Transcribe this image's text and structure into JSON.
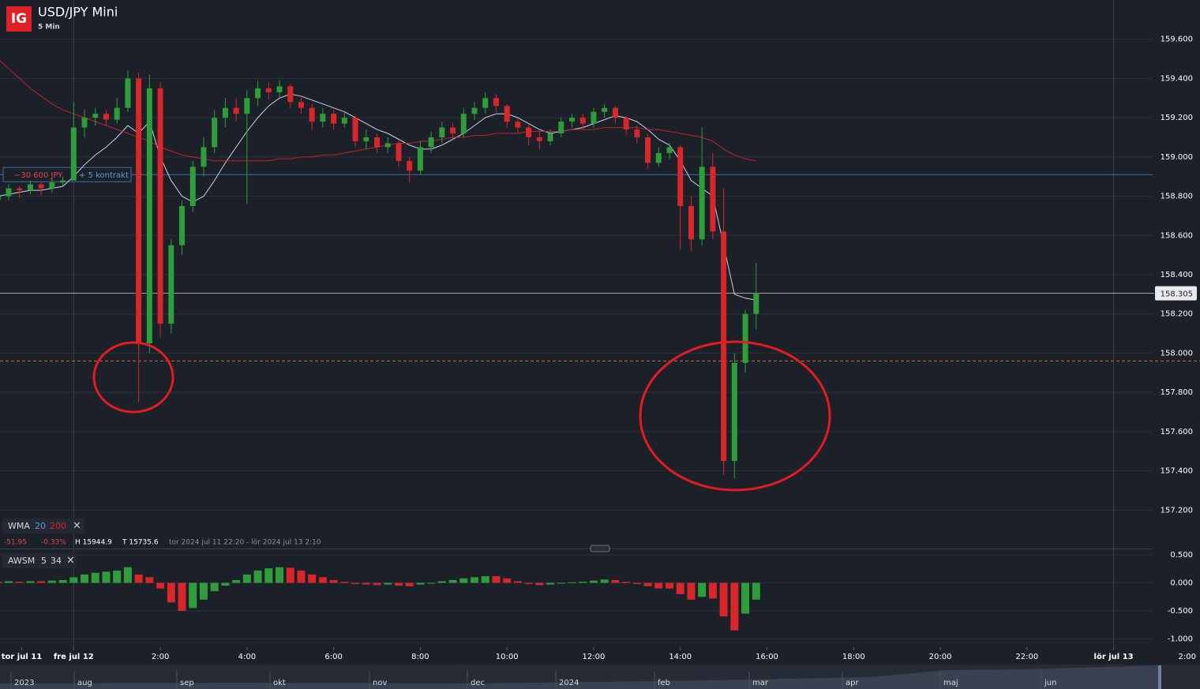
{
  "header": {
    "logo": "IG",
    "title": "USD/JPY Mini",
    "interval": "5 Min"
  },
  "chart_data": [
    {
      "type": "candlestick",
      "x": [
        -1.75,
        -1.5,
        -1.25,
        -1,
        -0.75,
        -0.5,
        -0.25,
        0,
        0.25,
        0.5,
        0.75,
        1,
        1.25,
        1.5,
        1.75,
        2,
        2.25,
        2.5,
        2.75,
        3,
        3.25,
        3.5,
        3.75,
        4,
        4.25,
        4.5,
        4.75,
        5,
        5.25,
        5.5,
        5.75,
        6,
        6.25,
        6.5,
        6.75,
        7,
        7.25,
        7.5,
        7.75,
        8,
        8.25,
        8.5,
        8.75,
        9,
        9.25,
        9.5,
        9.75,
        10,
        10.25,
        10.5,
        10.75,
        11,
        11.25,
        11.5,
        11.75,
        12,
        12.25,
        12.5,
        12.75,
        13,
        13.25,
        13.5,
        13.75,
        14,
        14.25,
        14.5,
        14.75,
        15,
        15.25,
        15.5,
        15.75
      ],
      "ohlc": [
        [
          158.78,
          158.83,
          158.76,
          158.8
        ],
        [
          158.8,
          158.86,
          158.78,
          158.84
        ],
        [
          158.84,
          158.85,
          158.79,
          158.83
        ],
        [
          158.83,
          158.88,
          158.81,
          158.86
        ],
        [
          158.86,
          158.87,
          158.8,
          158.84
        ],
        [
          158.84,
          158.89,
          158.82,
          158.87
        ],
        [
          158.87,
          158.9,
          158.85,
          158.88
        ],
        [
          158.88,
          159.28,
          158.88,
          159.15
        ],
        [
          159.15,
          159.24,
          159.1,
          159.2
        ],
        [
          159.2,
          159.25,
          159.16,
          159.22
        ],
        [
          159.22,
          159.24,
          159.16,
          159.19
        ],
        [
          159.19,
          159.3,
          159.17,
          159.25
        ],
        [
          159.25,
          159.44,
          159.23,
          159.4
        ],
        [
          159.4,
          159.43,
          157.75,
          158.05
        ],
        [
          158.05,
          159.42,
          158,
          159.35
        ],
        [
          159.35,
          159.38,
          158.08,
          158.15
        ],
        [
          158.15,
          158.58,
          158.1,
          158.55
        ],
        [
          158.55,
          158.78,
          158.5,
          158.75
        ],
        [
          158.75,
          158.98,
          158.72,
          158.95
        ],
        [
          158.95,
          159.1,
          158.9,
          159.05
        ],
        [
          159.05,
          159.24,
          159.02,
          159.2
        ],
        [
          159.2,
          159.3,
          159.15,
          159.25
        ],
        [
          159.25,
          159.3,
          159.18,
          159.22
        ],
        [
          159.22,
          159.34,
          158.76,
          159.3
        ],
        [
          159.3,
          159.39,
          159.26,
          159.35
        ],
        [
          159.35,
          159.38,
          159.29,
          159.33
        ],
        [
          159.33,
          159.39,
          159.3,
          159.36
        ],
        [
          159.36,
          159.37,
          159.25,
          159.28
        ],
        [
          159.28,
          159.31,
          159.22,
          159.25
        ],
        [
          159.25,
          159.27,
          159.14,
          159.18
        ],
        [
          159.18,
          159.25,
          159.15,
          159.22
        ],
        [
          159.22,
          159.24,
          159.14,
          159.17
        ],
        [
          159.17,
          159.23,
          159.15,
          159.2
        ],
        [
          159.2,
          159.21,
          159.05,
          159.08
        ],
        [
          159.08,
          159.14,
          159.04,
          159.1
        ],
        [
          159.1,
          159.12,
          159.02,
          159.05
        ],
        [
          159.05,
          159.1,
          159.02,
          159.07
        ],
        [
          159.07,
          159.08,
          158.95,
          158.98
        ],
        [
          158.98,
          159,
          158.87,
          158.93
        ],
        [
          158.93,
          159.08,
          158.91,
          159.05
        ],
        [
          159.05,
          159.13,
          159.02,
          159.1
        ],
        [
          159.1,
          159.18,
          159.07,
          159.15
        ],
        [
          159.15,
          159.17,
          159.09,
          159.12
        ],
        [
          159.12,
          159.25,
          159.1,
          159.22
        ],
        [
          159.22,
          159.28,
          159.19,
          159.25
        ],
        [
          159.25,
          159.33,
          159.22,
          159.3
        ],
        [
          159.3,
          159.32,
          159.23,
          159.26
        ],
        [
          159.26,
          159.27,
          159.15,
          159.18
        ],
        [
          159.18,
          159.2,
          159.12,
          159.15
        ],
        [
          159.15,
          159.17,
          159.06,
          159.1
        ],
        [
          159.1,
          159.13,
          159.04,
          159.08
        ],
        [
          159.08,
          159.14,
          159.06,
          159.12
        ],
        [
          159.12,
          159.2,
          159.1,
          159.18
        ],
        [
          159.18,
          159.22,
          159.15,
          159.2
        ],
        [
          159.2,
          159.22,
          159.14,
          159.17
        ],
        [
          159.17,
          159.25,
          159.15,
          159.23
        ],
        [
          159.23,
          159.27,
          159.2,
          159.25
        ],
        [
          159.25,
          159.26,
          159.17,
          159.2
        ],
        [
          159.2,
          159.21,
          159.11,
          159.14
        ],
        [
          159.14,
          159.16,
          159.07,
          159.1
        ],
        [
          159.1,
          159.12,
          158.94,
          158.97
        ],
        [
          158.97,
          159.05,
          158.95,
          159.02
        ],
        [
          159.02,
          159.07,
          158.99,
          159.05
        ],
        [
          159.05,
          159.06,
          158.53,
          158.75
        ],
        [
          158.75,
          158.8,
          158.52,
          158.58
        ],
        [
          158.58,
          159.15,
          158.55,
          158.95
        ],
        [
          158.95,
          159.02,
          158.58,
          158.62
        ],
        [
          158.62,
          158.84,
          157.38,
          157.45
        ],
        [
          157.45,
          158,
          157.36,
          157.95
        ],
        [
          157.95,
          158.22,
          157.9,
          158.2
        ],
        [
          158.2,
          158.46,
          158.12,
          158.305
        ]
      ],
      "colors": {
        "up": "#2f9e3a",
        "down": "#d9262a"
      },
      "xlim": [
        -1.7,
        24.9
      ],
      "xticks": [
        {
          "value": -1.2,
          "label": "tor jul 11"
        },
        {
          "value": 0,
          "label": "fre jul 12"
        },
        {
          "value": 2,
          "label": "2:00"
        },
        {
          "value": 4,
          "label": "4:00"
        },
        {
          "value": 6,
          "label": "6:00"
        },
        {
          "value": 8,
          "label": "8:00"
        },
        {
          "value": 10,
          "label": "10:00"
        },
        {
          "value": 12,
          "label": "12:00"
        },
        {
          "value": 14,
          "label": "14:00"
        },
        {
          "value": 16,
          "label": "16:00"
        },
        {
          "value": 18,
          "label": "18:00"
        },
        {
          "value": 20,
          "label": "20:00"
        },
        {
          "value": 22,
          "label": "22:00"
        },
        {
          "value": 24,
          "label": "lör jul 13"
        },
        {
          "value": 26,
          "label": "2:00"
        }
      ],
      "ylim": [
        157.0,
        159.8
      ],
      "yticks": [
        {
          "value": 157.2,
          "label": "157.200"
        },
        {
          "value": 157.4,
          "label": "157.400"
        },
        {
          "value": 157.6,
          "label": "157.600"
        },
        {
          "value": 157.8,
          "label": "157.800"
        },
        {
          "value": 158.0,
          "label": "158.000"
        },
        {
          "value": 158.2,
          "label": "158.200"
        },
        {
          "value": 158.4,
          "label": "158.400"
        },
        {
          "value": 158.6,
          "label": "158.600"
        },
        {
          "value": 158.8,
          "label": "158.800"
        },
        {
          "value": 159.0,
          "label": "159.000"
        },
        {
          "value": 159.2,
          "label": "159.200"
        },
        {
          "value": 159.4,
          "label": "159.400"
        },
        {
          "value": 159.6,
          "label": "159.600"
        }
      ],
      "grid": true,
      "legend": {
        "name": "WMA",
        "close": "×",
        "change": "-51.95",
        "change_pct": "-0.33%",
        "high": "H 15944.9",
        "low": "T 15735.6",
        "range": "tor 2024 jul 11 22:20 - lör 2024 jul 13 2:10"
      },
      "overlays": [
        {
          "period": 20,
          "color": "#c9d3e6",
          "values": [
            158.8,
            158.81,
            158.82,
            158.83,
            158.83,
            158.84,
            158.85,
            158.9,
            158.96,
            159.01,
            159.05,
            159.1,
            159.16,
            159.12,
            159.18,
            159.0,
            158.88,
            158.8,
            158.77,
            158.8,
            158.88,
            158.97,
            159.05,
            159.13,
            159.2,
            159.26,
            159.3,
            159.32,
            159.31,
            159.29,
            159.27,
            159.25,
            159.23,
            159.2,
            159.17,
            159.14,
            159.12,
            159.09,
            159.06,
            159.04,
            159.04,
            159.06,
            159.09,
            159.12,
            159.16,
            159.2,
            159.22,
            159.22,
            159.2,
            159.17,
            159.14,
            159.12,
            159.13,
            159.14,
            159.15,
            159.17,
            159.19,
            159.21,
            159.2,
            159.18,
            159.14,
            159.09,
            159.06,
            158.98,
            158.88,
            158.84,
            158.8,
            158.55,
            158.3,
            158.28,
            158.27
          ]
        },
        {
          "period": 200,
          "color": "#b8262c",
          "values": [
            159.5,
            159.45,
            159.4,
            159.35,
            159.31,
            159.27,
            159.24,
            159.22,
            159.2,
            159.18,
            159.16,
            159.14,
            159.12,
            159.1,
            159.08,
            159.05,
            159.03,
            159.01,
            159.0,
            158.99,
            158.98,
            158.98,
            158.98,
            158.98,
            158.98,
            158.98,
            158.99,
            158.99,
            159.0,
            159.0,
            159.01,
            159.01,
            159.02,
            159.03,
            159.04,
            159.05,
            159.06,
            159.07,
            159.07,
            159.08,
            159.08,
            159.09,
            159.1,
            159.1,
            159.11,
            159.11,
            159.12,
            159.12,
            159.12,
            159.13,
            159.13,
            159.13,
            159.13,
            159.14,
            159.14,
            159.14,
            159.15,
            159.15,
            159.15,
            159.15,
            159.14,
            159.14,
            159.13,
            159.12,
            159.11,
            159.1,
            159.08,
            159.04,
            159.01,
            158.99,
            158.98
          ]
        }
      ],
      "last_price": {
        "value": 158.305,
        "label": "158.305"
      },
      "position_line": {
        "value": 158.91,
        "pnl": "−30 600 JPY",
        "size": "+ 5 kontrakt"
      },
      "order_line": {
        "value": 157.96
      }
    },
    {
      "type": "histogram-oscillator",
      "name": "AWSM",
      "fast": 5,
      "slow": 34,
      "close": "×",
      "colors": {
        "up": "#2f9e3a",
        "down": "#d9262a"
      },
      "values": [
        0.02,
        0.03,
        0.02,
        0.03,
        0.03,
        0.04,
        0.05,
        0.1,
        0.15,
        0.18,
        0.2,
        0.22,
        0.28,
        0.15,
        0.1,
        -0.1,
        -0.35,
        -0.5,
        -0.45,
        -0.3,
        -0.15,
        -0.05,
        0.05,
        0.15,
        0.22,
        0.26,
        0.28,
        0.27,
        0.22,
        0.15,
        0.1,
        0.05,
        0.02,
        -0.02,
        -0.03,
        -0.04,
        -0.03,
        -0.05,
        -0.06,
        -0.03,
        0.0,
        0.03,
        0.05,
        0.08,
        0.1,
        0.12,
        0.12,
        0.08,
        0.03,
        -0.02,
        -0.04,
        -0.03,
        -0.01,
        0.01,
        0.02,
        0.04,
        0.06,
        0.05,
        0.02,
        -0.02,
        -0.06,
        -0.1,
        -0.1,
        -0.2,
        -0.3,
        -0.25,
        -0.28,
        -0.6,
        -0.85,
        -0.55,
        -0.3
      ],
      "ylim": [
        -1.15,
        0.6
      ],
      "yticks": [
        {
          "value": -1.0,
          "label": "-1.000"
        },
        {
          "value": -0.5,
          "label": "-0.500"
        },
        {
          "value": 0,
          "label": "0.000"
        },
        {
          "value": 0.5,
          "label": "0.500"
        }
      ]
    }
  ],
  "navigator": {
    "labels": [
      "2023",
      "aug",
      "sep",
      "okt",
      "nov",
      "dec",
      "2024",
      "feb",
      "mar",
      "apr",
      "maj",
      "jun"
    ]
  }
}
